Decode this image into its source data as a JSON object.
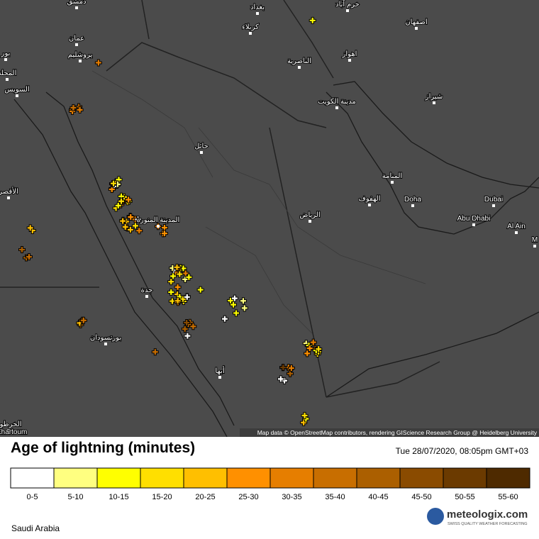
{
  "map": {
    "labels": [
      "دمشق",
      "بغداد",
      "خرم آباد",
      "عمان",
      "كربلاء",
      "اصفهان",
      "يروشليم",
      "بور",
      "اهواز",
      "الناصرية",
      "المحلة",
      "السويس",
      "مدينة الكويت",
      "شيراز",
      "حائل",
      "المنامة",
      "الأقصر",
      "الهفوف",
      "Doha",
      "Dubai",
      "الرياض",
      "المدينة المنورة",
      "Abu Dhabi",
      "Al Ain",
      "M",
      "جدة",
      "بورتسودان",
      "أبها",
      "الخرطوم",
      "Khartoum"
    ],
    "attribution": "Map data © OpenStreetMap contributors, rendering GIScience Research Group @ Heidelberg University"
  },
  "legend": {
    "title": "Age of lightning (minutes)",
    "timestamp": "Tue 28/07/2020, 08:05pm GMT+03",
    "items": [
      {
        "label": "0-5",
        "color": "#ffffff"
      },
      {
        "label": "5-10",
        "color": "#ffff80"
      },
      {
        "label": "10-15",
        "color": "#ffff00"
      },
      {
        "label": "15-20",
        "color": "#ffdf00"
      },
      {
        "label": "20-25",
        "color": "#ffbf00"
      },
      {
        "label": "25-30",
        "color": "#ff9000"
      },
      {
        "label": "30-35",
        "color": "#e67e00"
      },
      {
        "label": "35-40",
        "color": "#c86e00"
      },
      {
        "label": "40-45",
        "color": "#ab5f00"
      },
      {
        "label": "45-50",
        "color": "#8a4b00"
      },
      {
        "label": "50-55",
        "color": "#6b3a00"
      },
      {
        "label": "55-60",
        "color": "#4e2a00"
      }
    ]
  },
  "region": "Saudi Arabia",
  "logo": {
    "name": "meteologix.com",
    "tagline": "SWISS QUALITY WEATHER FORECASTING"
  }
}
